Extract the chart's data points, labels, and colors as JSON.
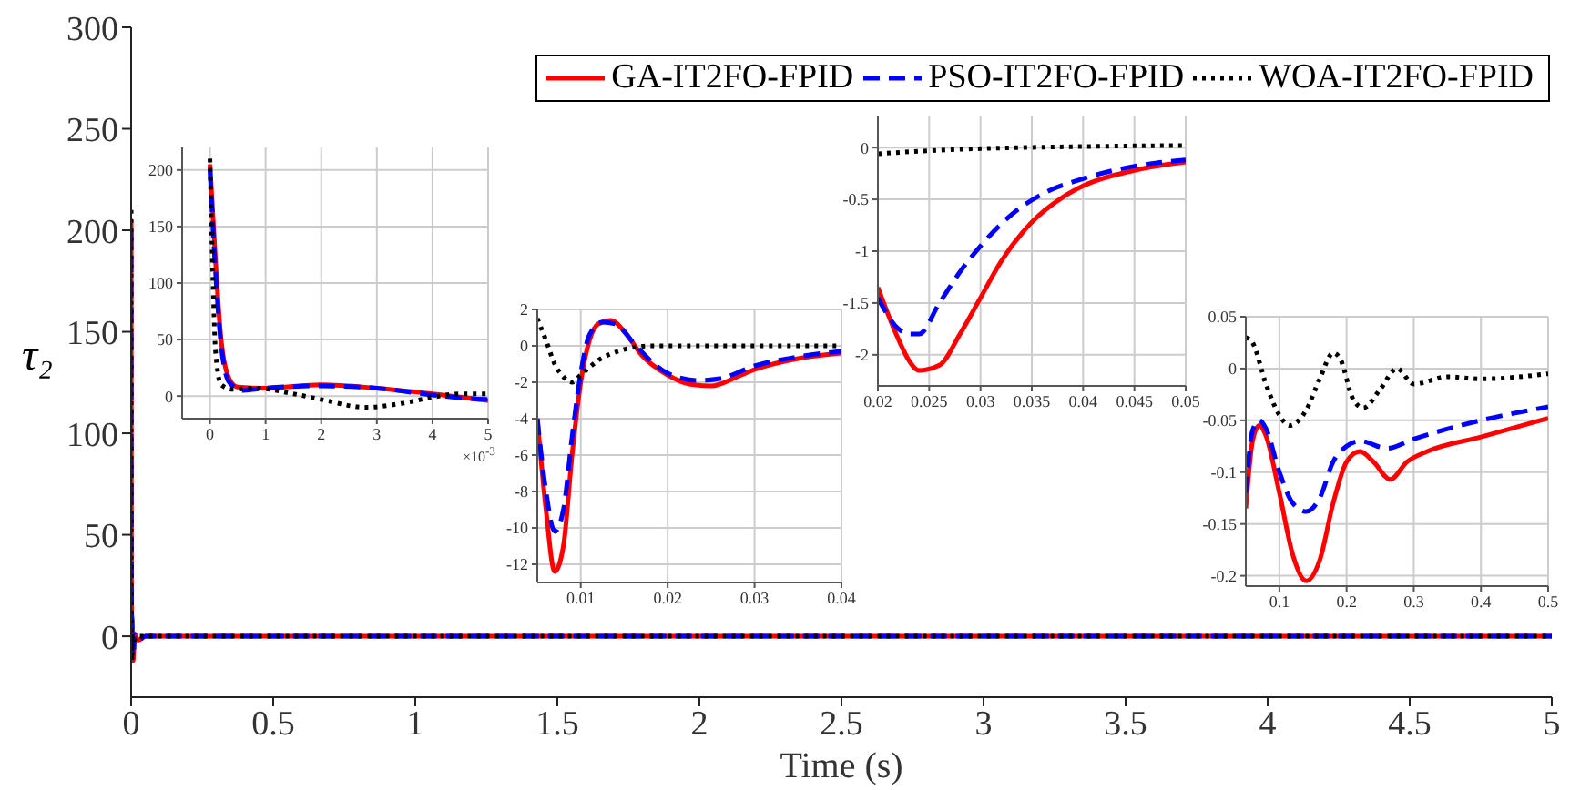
{
  "chart_data": [
    {
      "type": "line",
      "xlabel": "Time (s)",
      "ylabel": "τ₂",
      "xlim": [
        0,
        5
      ],
      "ylim": [
        -30,
        300
      ],
      "xticks": [
        0,
        0.5,
        1,
        1.5,
        2,
        2.5,
        3,
        3.5,
        4,
        4.5,
        5
      ],
      "yticks": [
        0,
        50,
        100,
        150,
        200,
        250,
        300
      ],
      "legend": "top right",
      "series": [
        {
          "name": "GA-IT2FO-FPID",
          "color": "#ff0000",
          "line_style": "solid",
          "x": [
            0,
            0.001,
            0.002,
            0.004,
            0.007,
            0.012,
            0.025,
            0.05,
            5
          ],
          "values": [
            205,
            30,
            10,
            8,
            -12,
            1,
            -2,
            0,
            0
          ]
        },
        {
          "name": "PSO-IT2FO-FPID",
          "color": "#0000ff",
          "line_style": "dashed",
          "x": [
            0,
            0.001,
            0.002,
            0.007,
            0.013,
            0.025,
            0.05,
            5
          ],
          "values": [
            200,
            30,
            8,
            -10,
            1,
            -2,
            0,
            0
          ]
        },
        {
          "name": "WOA-IT2FO-FPID",
          "color": "#000000",
          "line_style": "dotted",
          "x": [
            0,
            0.0003,
            0.001,
            0.003,
            0.005,
            0.009,
            0.02,
            5
          ],
          "values": [
            210,
            20,
            5,
            -12,
            1,
            -2,
            0,
            0
          ]
        }
      ]
    },
    {
      "type": "line",
      "xlabel": "×10$^{-3}$",
      "xlim": [
        -0.5,
        5
      ],
      "ylim": [
        -20,
        220
      ],
      "xticks": [
        0,
        1,
        2,
        3,
        4,
        5
      ],
      "yticks": [
        0,
        50,
        100,
        150,
        200
      ],
      "grid": true,
      "series": [
        {
          "color": "#ff0000",
          "line_style": "solid",
          "x": [
            0,
            0.1,
            0.2,
            0.35,
            0.5,
            1,
            2,
            3,
            4,
            5
          ],
          "values": [
            205,
            120,
            50,
            15,
            8,
            7,
            10,
            7,
            2,
            -4
          ]
        },
        {
          "color": "#0000ff",
          "line_style": "dashed",
          "x": [
            0,
            0.1,
            0.2,
            0.35,
            0.6,
            1,
            2,
            3,
            4,
            4.6,
            5
          ],
          "values": [
            200,
            110,
            45,
            12,
            5,
            7,
            9,
            7,
            1,
            -2,
            -3
          ]
        },
        {
          "color": "#000000",
          "line_style": "dotted",
          "x": [
            0,
            0.05,
            0.1,
            0.2,
            0.4,
            0.8,
            1.5,
            2,
            2.8,
            3.5,
            4,
            4.5,
            5
          ],
          "values": [
            210,
            110,
            40,
            10,
            6,
            7,
            2,
            -3,
            -10,
            -6,
            -1,
            2,
            2
          ]
        }
      ]
    },
    {
      "type": "line",
      "xlim": [
        0.005,
        0.04
      ],
      "ylim": [
        -13,
        2
      ],
      "xticks": [
        0.01,
        0.02,
        0.03,
        0.04
      ],
      "yticks": [
        -12,
        -10,
        -8,
        -6,
        -4,
        -2,
        0,
        2
      ],
      "grid": true,
      "series": [
        {
          "color": "#ff0000",
          "line_style": "solid",
          "x": [
            0.005,
            0.006,
            0.007,
            0.008,
            0.009,
            0.01,
            0.011,
            0.012,
            0.0135,
            0.015,
            0.017,
            0.02,
            0.0225,
            0.025,
            0.028,
            0.03,
            0.035,
            0.04
          ],
          "values": [
            -4,
            -9,
            -12.4,
            -11,
            -6,
            -2,
            0.3,
            1.2,
            1.4,
            0.8,
            -0.5,
            -1.6,
            -2.1,
            -2.2,
            -1.7,
            -1.3,
            -0.7,
            -0.4
          ]
        },
        {
          "color": "#0000ff",
          "line_style": "dashed",
          "x": [
            0.005,
            0.006,
            0.007,
            0.008,
            0.009,
            0.01,
            0.011,
            0.0125,
            0.014,
            0.016,
            0.018,
            0.02,
            0.0235,
            0.026,
            0.03,
            0.035,
            0.04
          ],
          "values": [
            -4,
            -8,
            -10.2,
            -9,
            -5,
            -1.5,
            0.6,
            1.3,
            1.2,
            0.2,
            -0.8,
            -1.5,
            -1.9,
            -1.8,
            -1.1,
            -0.6,
            -0.3
          ]
        },
        {
          "color": "#000000",
          "line_style": "dotted",
          "x": [
            0.005,
            0.006,
            0.007,
            0.008,
            0.009,
            0.01,
            0.012,
            0.015,
            0.018,
            0.04
          ],
          "values": [
            1.5,
            0.3,
            -1,
            -1.7,
            -2,
            -1.6,
            -0.8,
            -0.2,
            0,
            0
          ]
        }
      ]
    },
    {
      "type": "line",
      "xlim": [
        0.02,
        0.05
      ],
      "ylim": [
        -2.3,
        0.3
      ],
      "xticks": [
        0.02,
        0.025,
        0.03,
        0.035,
        0.04,
        0.045,
        0.05
      ],
      "yticks": [
        -2,
        -1.5,
        -1,
        -0.5,
        0
      ],
      "grid": true,
      "series": [
        {
          "color": "#ff0000",
          "line_style": "solid",
          "x": [
            0.02,
            0.022,
            0.023,
            0.024,
            0.026,
            0.028,
            0.03,
            0.032,
            0.035,
            0.038,
            0.04,
            0.045,
            0.05
          ],
          "values": [
            -1.35,
            -1.85,
            -2.05,
            -2.15,
            -2.1,
            -1.8,
            -1.45,
            -1.1,
            -0.72,
            -0.48,
            -0.37,
            -0.22,
            -0.14
          ]
        },
        {
          "color": "#0000ff",
          "line_style": "dashed",
          "x": [
            0.02,
            0.022,
            0.023,
            0.024,
            0.026,
            0.028,
            0.03,
            0.033,
            0.036,
            0.04,
            0.045,
            0.05
          ],
          "values": [
            -1.45,
            -1.75,
            -1.8,
            -1.8,
            -1.5,
            -1.2,
            -0.95,
            -0.65,
            -0.45,
            -0.3,
            -0.18,
            -0.12
          ]
        },
        {
          "color": "#000000",
          "line_style": "dotted",
          "x": [
            0.02,
            0.025,
            0.03,
            0.04,
            0.05
          ],
          "values": [
            -0.06,
            -0.03,
            -0.01,
            0.01,
            0.02
          ]
        }
      ]
    },
    {
      "type": "line",
      "xlim": [
        0.05,
        0.5
      ],
      "ylim": [
        -0.21,
        0.05
      ],
      "xticks": [
        0.1,
        0.2,
        0.3,
        0.4,
        0.5
      ],
      "yticks": [
        -0.2,
        -0.15,
        -0.1,
        -0.05,
        0,
        0.05
      ],
      "grid": true,
      "series": [
        {
          "color": "#ff0000",
          "line_style": "solid",
          "x": [
            0.05,
            0.06,
            0.07,
            0.08,
            0.1,
            0.12,
            0.14,
            0.16,
            0.18,
            0.2,
            0.22,
            0.24,
            0.265,
            0.29,
            0.32,
            0.4,
            0.5
          ],
          "values": [
            -0.135,
            -0.07,
            -0.055,
            -0.065,
            -0.12,
            -0.18,
            -0.205,
            -0.185,
            -0.13,
            -0.09,
            -0.08,
            -0.09,
            -0.107,
            -0.09,
            -0.08,
            -0.066,
            -0.048
          ]
        },
        {
          "color": "#0000ff",
          "line_style": "dashed",
          "x": [
            0.05,
            0.06,
            0.07,
            0.08,
            0.1,
            0.12,
            0.14,
            0.16,
            0.18,
            0.2,
            0.22,
            0.26,
            0.3,
            0.4,
            0.5
          ],
          "values": [
            -0.12,
            -0.06,
            -0.05,
            -0.058,
            -0.1,
            -0.13,
            -0.138,
            -0.125,
            -0.09,
            -0.075,
            -0.07,
            -0.077,
            -0.068,
            -0.05,
            -0.037
          ]
        },
        {
          "color": "#000000",
          "line_style": "dotted",
          "x": [
            0.05,
            0.06,
            0.08,
            0.1,
            0.115,
            0.14,
            0.16,
            0.18,
            0.19,
            0.21,
            0.225,
            0.25,
            0.275,
            0.3,
            0.35,
            0.4,
            0.5
          ],
          "values": [
            0.03,
            0.025,
            -0.015,
            -0.045,
            -0.055,
            -0.04,
            -0.01,
            0.015,
            0.01,
            -0.03,
            -0.038,
            -0.02,
            0,
            -0.015,
            -0.008,
            -0.01,
            -0.005
          ]
        }
      ]
    }
  ]
}
